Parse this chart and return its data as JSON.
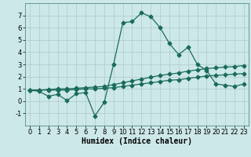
{
  "title": "",
  "xlabel": "Humidex (Indice chaleur)",
  "ylabel": "",
  "background_color": "#cce8e8",
  "grid_color": "#b0c8c8",
  "line_color": "#1a6b5a",
  "x": [
    0,
    1,
    2,
    3,
    4,
    5,
    6,
    7,
    8,
    9,
    10,
    11,
    12,
    13,
    14,
    15,
    16,
    17,
    18,
    19,
    20,
    21,
    22,
    23
  ],
  "line1": [
    0.9,
    0.8,
    0.4,
    0.55,
    0.05,
    0.6,
    0.7,
    -1.2,
    -0.1,
    3.0,
    6.4,
    6.5,
    7.2,
    6.9,
    6.0,
    4.7,
    3.8,
    4.4,
    3.0,
    2.5,
    1.4,
    1.3,
    1.2,
    1.4
  ],
  "line2": [
    0.9,
    0.9,
    0.9,
    0.9,
    0.9,
    0.95,
    1.0,
    1.0,
    1.05,
    1.1,
    1.2,
    1.3,
    1.4,
    1.5,
    1.6,
    1.7,
    1.75,
    1.85,
    1.95,
    2.05,
    2.1,
    2.15,
    2.2,
    2.25
  ],
  "line3": [
    0.9,
    0.9,
    0.95,
    1.0,
    1.0,
    1.05,
    1.1,
    1.15,
    1.2,
    1.35,
    1.5,
    1.65,
    1.8,
    1.95,
    2.1,
    2.2,
    2.3,
    2.45,
    2.55,
    2.65,
    2.72,
    2.78,
    2.82,
    2.9
  ],
  "ylim": [
    -2,
    8
  ],
  "xlim": [
    -0.5,
    23.5
  ],
  "yticks": [
    -1,
    0,
    1,
    2,
    3,
    4,
    5,
    6,
    7
  ],
  "xticks": [
    0,
    1,
    2,
    3,
    4,
    5,
    6,
    7,
    8,
    9,
    10,
    11,
    12,
    13,
    14,
    15,
    16,
    17,
    18,
    19,
    20,
    21,
    22,
    23
  ],
  "tick_fontsize": 6,
  "xlabel_fontsize": 7,
  "marker": "D",
  "markersize": 2.5,
  "linewidth": 0.9
}
